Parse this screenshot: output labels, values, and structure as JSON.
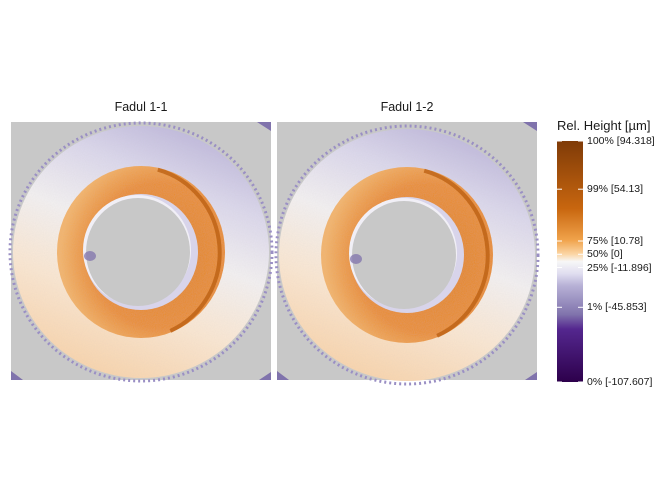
{
  "chart_data": {
    "type": "heatmap",
    "panels": [
      {
        "title": "Fadul 1-1"
      },
      {
        "title": "Fadul 1-2"
      }
    ],
    "legend": {
      "title": "Rel. Height [µm]",
      "ticks": [
        {
          "label": "100% [94.318]",
          "value": 94.318
        },
        {
          "label": "99% [54.13]",
          "value": 54.13
        },
        {
          "label": "75% [10.78]",
          "value": 10.78
        },
        {
          "label": "50% [0]",
          "value": 0
        },
        {
          "label": "25% [-11.896]",
          "value": -11.896
        },
        {
          "label": "1% [-45.853]",
          "value": -45.853
        },
        {
          "label": "0% [-107.607]",
          "value": -107.607
        }
      ],
      "colors": {
        "max": "#7f3b08",
        "high": "#e08214",
        "mid": "#f7f7f7",
        "low": "#8073ac",
        "min": "#2d004b"
      }
    },
    "na_color": "#c8c8c8"
  }
}
